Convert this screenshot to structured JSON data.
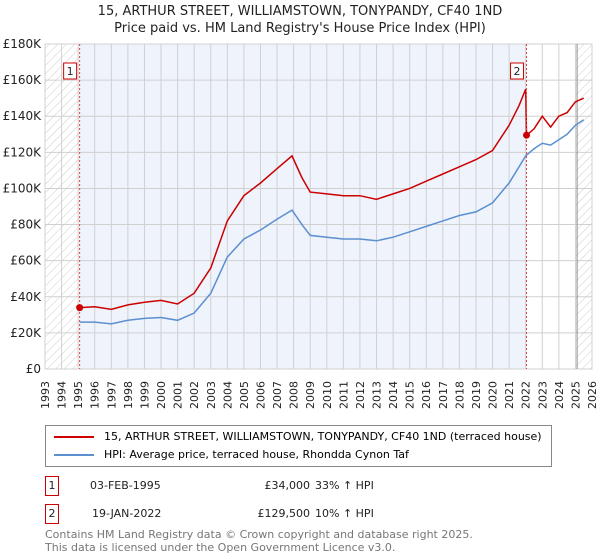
{
  "chart_data": {
    "type": "line",
    "title": "15, ARTHUR STREET, WILLIAMSTOWN, TONYPANDY, CF40 1ND",
    "subtitle": "Price paid vs. HM Land Registry's House Price Index (HPI)",
    "xlim": [
      1993,
      2026
    ],
    "ylim": [
      0,
      180000
    ],
    "yticks": [
      0,
      20000,
      40000,
      60000,
      80000,
      100000,
      120000,
      140000,
      160000,
      180000
    ],
    "ytick_labels": [
      "£0",
      "£20K",
      "£40K",
      "£60K",
      "£80K",
      "£100K",
      "£120K",
      "£140K",
      "£160K",
      "£180K"
    ],
    "xticks": [
      1993,
      1994,
      1995,
      1996,
      1997,
      1998,
      1999,
      2000,
      2001,
      2002,
      2003,
      2004,
      2005,
      2006,
      2007,
      2008,
      2009,
      2010,
      2011,
      2012,
      2013,
      2014,
      2015,
      2016,
      2017,
      2018,
      2019,
      2020,
      2021,
      2022,
      2023,
      2024,
      2025,
      2026
    ],
    "grid": true,
    "series": [
      {
        "name": "15, ARTHUR STREET, WILLIAMSTOWN, TONYPANDY, CF40 1ND (terraced house)",
        "color": "#cc0000",
        "x": [
          1995.09,
          1996,
          1997,
          1998,
          1999,
          2000,
          2001,
          2002,
          2003,
          2004,
          2005,
          2006,
          2007,
          2007.9,
          2008.5,
          2009,
          2010,
          2011,
          2012,
          2013,
          2014,
          2015,
          2016,
          2017,
          2018,
          2019,
          2020,
          2021,
          2021.6,
          2022.0,
          2022.05,
          2022.5,
          2023,
          2023.5,
          2024,
          2024.5,
          2025,
          2025.5
        ],
        "y": [
          34000,
          34500,
          33000,
          35500,
          37000,
          38000,
          36000,
          42000,
          56000,
          82000,
          96000,
          103000,
          111000,
          118000,
          106000,
          98000,
          97000,
          96000,
          96000,
          94000,
          97000,
          100000,
          104000,
          108000,
          112000,
          116000,
          121000,
          135000,
          146000,
          155000,
          129500,
          133000,
          140000,
          134000,
          140000,
          142000,
          148000,
          150000
        ]
      },
      {
        "name": "HPI: Average price, terraced house, Rhondda Cynon Taf",
        "color": "#5b8fd0",
        "x": [
          1995.09,
          1996,
          1997,
          1998,
          1999,
          2000,
          2001,
          2002,
          2003,
          2004,
          2005,
          2006,
          2007,
          2007.9,
          2008.5,
          2009,
          2010,
          2011,
          2012,
          2013,
          2014,
          2015,
          2016,
          2017,
          2018,
          2019,
          2020,
          2021,
          2022,
          2022.5,
          2023,
          2023.5,
          2024,
          2024.5,
          2025,
          2025.5
        ],
        "y": [
          26000,
          26000,
          25000,
          27000,
          28000,
          28500,
          27000,
          31000,
          42000,
          62000,
          72000,
          77000,
          83000,
          88000,
          80000,
          74000,
          73000,
          72000,
          72000,
          71000,
          73000,
          76000,
          79000,
          82000,
          85000,
          87000,
          92000,
          103000,
          118000,
          122000,
          125000,
          124000,
          127000,
          130000,
          135000,
          138000
        ]
      }
    ],
    "annotations": [
      {
        "label": "1",
        "x": 1995.09,
        "y": 34000
      },
      {
        "label": "2",
        "x": 2022.05,
        "y": 129500
      }
    ]
  },
  "legend": {
    "items": [
      "15, ARTHUR STREET, WILLIAMSTOWN, TONYPANDY, CF40 1ND (terraced house)",
      "HPI: Average price, terraced house, Rhondda Cynon Taf"
    ]
  },
  "transactions": [
    {
      "num": "1",
      "date": "03-FEB-1995",
      "price": "£34,000",
      "hpi": "33% ↑ HPI"
    },
    {
      "num": "2",
      "date": "19-JAN-2022",
      "price": "£129,500",
      "hpi": "10% ↑ HPI"
    }
  ],
  "footer": {
    "line1": "Contains HM Land Registry data © Crown copyright and database right 2025.",
    "line2": "This data is licensed under the Open Government Licence v3.0."
  }
}
